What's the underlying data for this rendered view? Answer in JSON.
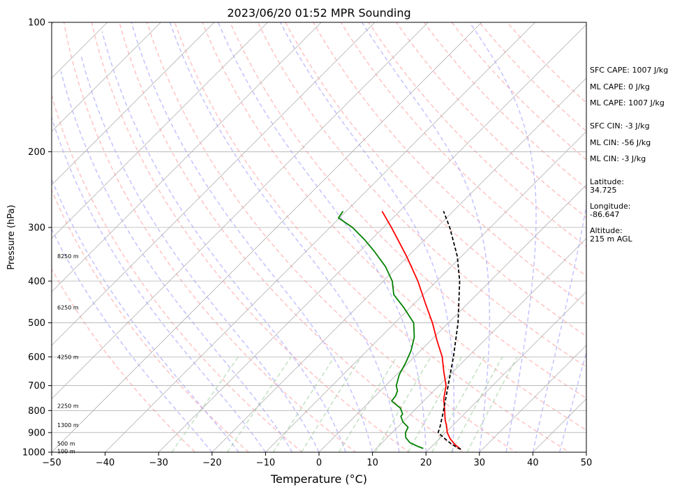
{
  "chart_data": {
    "type": "line",
    "title": "2023/06/20 01:52 MPR Sounding",
    "xlabel": "Temperature (°C)",
    "ylabel": "Pressure (hPa)",
    "xlim": [
      -50,
      50
    ],
    "ylim": [
      1000,
      100
    ],
    "yscale": "log",
    "skew": true,
    "x_ticks": [
      "−50",
      "−40",
      "−30",
      "−20",
      "−10",
      "0",
      "10",
      "20",
      "30",
      "40",
      "50"
    ],
    "y_ticks": [
      {
        "value": 100,
        "label": "100"
      },
      {
        "value": 200,
        "label": "200"
      },
      {
        "value": 300,
        "label": "300"
      },
      {
        "value": 400,
        "label": "400"
      },
      {
        "value": 500,
        "label": "500"
      },
      {
        "value": 600,
        "label": "600"
      },
      {
        "value": 700,
        "label": "700"
      },
      {
        "value": 800,
        "label": "800"
      },
      {
        "value": 900,
        "label": "900"
      },
      {
        "value": 1000,
        "label": "1000"
      }
    ],
    "height_labels": [
      {
        "pressure": 995,
        "text": "100 m"
      },
      {
        "pressure": 955,
        "text": "500 m"
      },
      {
        "pressure": 865,
        "text": "1300 m"
      },
      {
        "pressure": 780,
        "text": "2250 m"
      },
      {
        "pressure": 600,
        "text": "4250 m"
      },
      {
        "pressure": 460,
        "text": "6250 m"
      },
      {
        "pressure": 350,
        "text": "8250 m"
      }
    ],
    "series": [
      {
        "role": "temperature",
        "color": "#ff0000",
        "style": "solid",
        "points": [
          {
            "p": 985,
            "t": 26.0
          },
          {
            "p": 960,
            "t": 24.0
          },
          {
            "p": 930,
            "t": 22.0
          },
          {
            "p": 900,
            "t": 20.3
          },
          {
            "p": 870,
            "t": 19.0
          },
          {
            "p": 840,
            "t": 17.5
          },
          {
            "p": 800,
            "t": 15.7
          },
          {
            "p": 750,
            "t": 13.3
          },
          {
            "p": 700,
            "t": 11.3
          },
          {
            "p": 650,
            "t": 8.3
          },
          {
            "p": 600,
            "t": 5.2
          },
          {
            "p": 550,
            "t": 1.2
          },
          {
            "p": 500,
            "t": -3.0
          },
          {
            "p": 450,
            "t": -8.0
          },
          {
            "p": 400,
            "t": -13.5
          },
          {
            "p": 350,
            "t": -20.3
          },
          {
            "p": 300,
            "t": -28.5
          },
          {
            "p": 275,
            "t": -33.3
          }
        ]
      },
      {
        "role": "dewpoint",
        "color": "#008000",
        "style": "solid",
        "points": [
          {
            "p": 980,
            "t": 18.8
          },
          {
            "p": 970,
            "t": 17.5
          },
          {
            "p": 950,
            "t": 15.2
          },
          {
            "p": 925,
            "t": 13.5
          },
          {
            "p": 900,
            "t": 12.5
          },
          {
            "p": 875,
            "t": 12.0
          },
          {
            "p": 850,
            "t": 10.0
          },
          {
            "p": 825,
            "t": 8.6
          },
          {
            "p": 815,
            "t": 8.5
          },
          {
            "p": 790,
            "t": 7.0
          },
          {
            "p": 760,
            "t": 4.0
          },
          {
            "p": 740,
            "t": 3.8
          },
          {
            "p": 720,
            "t": 3.2
          },
          {
            "p": 700,
            "t": 2.0
          },
          {
            "p": 660,
            "t": 0.5
          },
          {
            "p": 620,
            "t": -0.5
          },
          {
            "p": 580,
            "t": -1.8
          },
          {
            "p": 540,
            "t": -3.7
          },
          {
            "p": 500,
            "t": -6.5
          },
          {
            "p": 460,
            "t": -11.3
          },
          {
            "p": 430,
            "t": -15.5
          },
          {
            "p": 400,
            "t": -18.3
          },
          {
            "p": 370,
            "t": -22.3
          },
          {
            "p": 340,
            "t": -27.4
          },
          {
            "p": 320,
            "t": -31.3
          },
          {
            "p": 300,
            "t": -35.8
          },
          {
            "p": 285,
            "t": -40.2
          },
          {
            "p": 275,
            "t": -40.6
          }
        ]
      },
      {
        "role": "parcel",
        "color": "#000000",
        "style": "dashed",
        "points": [
          {
            "p": 985,
            "t": 26.0
          },
          {
            "p": 960,
            "t": 23.5
          },
          {
            "p": 930,
            "t": 21.0
          },
          {
            "p": 900,
            "t": 18.6
          },
          {
            "p": 870,
            "t": 17.8
          },
          {
            "p": 800,
            "t": 15.5
          },
          {
            "p": 700,
            "t": 11.7
          },
          {
            "p": 600,
            "t": 7.3
          },
          {
            "p": 500,
            "t": 1.8
          },
          {
            "p": 400,
            "t": -5.7
          },
          {
            "p": 350,
            "t": -10.8
          },
          {
            "p": 300,
            "t": -17.6
          },
          {
            "p": 275,
            "t": -21.8
          }
        ]
      }
    ],
    "background_lines": {
      "isotherm_color": "#b0b0b0",
      "dry_adiabat_color": "#ffaaaa",
      "moist_adiabat_color": "#aaaaff",
      "mixing_ratio_color": "#99cc99",
      "isotherm_temps": [
        -160,
        -150,
        -140,
        -130,
        -120,
        -110,
        -100,
        -90,
        -80,
        -70,
        -60,
        -50,
        -40,
        -30,
        -20,
        -10,
        0,
        10,
        20,
        30,
        40,
        50
      ],
      "dry_adiabat_thetas": [
        250,
        260,
        270,
        280,
        290,
        300,
        310,
        320,
        330,
        340,
        350,
        360,
        370,
        380,
        390,
        400,
        410,
        420,
        430,
        440
      ],
      "moist_adiabat_starts": [
        -20,
        -15,
        -10,
        -5,
        0,
        5,
        10,
        15,
        20,
        25,
        30,
        35,
        40,
        45
      ],
      "mixing_ratios": [
        0.4,
        1,
        2,
        3,
        5,
        8,
        12,
        16,
        20,
        24
      ]
    }
  },
  "sidebar": {
    "sfc_cape": "SFC CAPE: 1007 J/kg",
    "ml_cape_1": "ML CAPE: 0 J/kg",
    "ml_cape_2": "ML CAPE: 1007 J/kg",
    "sfc_cin": "SFC CIN: -3 J/kg",
    "ml_cin_1": "ML CIN: -56 J/kg",
    "ml_cin_2": "ML CIN: -3 J/kg",
    "latitude_label": "Latitude:",
    "latitude_value": "34.725",
    "longitude_label": "Longitude:",
    "longitude_value": "-86.647",
    "altitude_label": "Altitude:",
    "altitude_value": "215 m AGL"
  }
}
